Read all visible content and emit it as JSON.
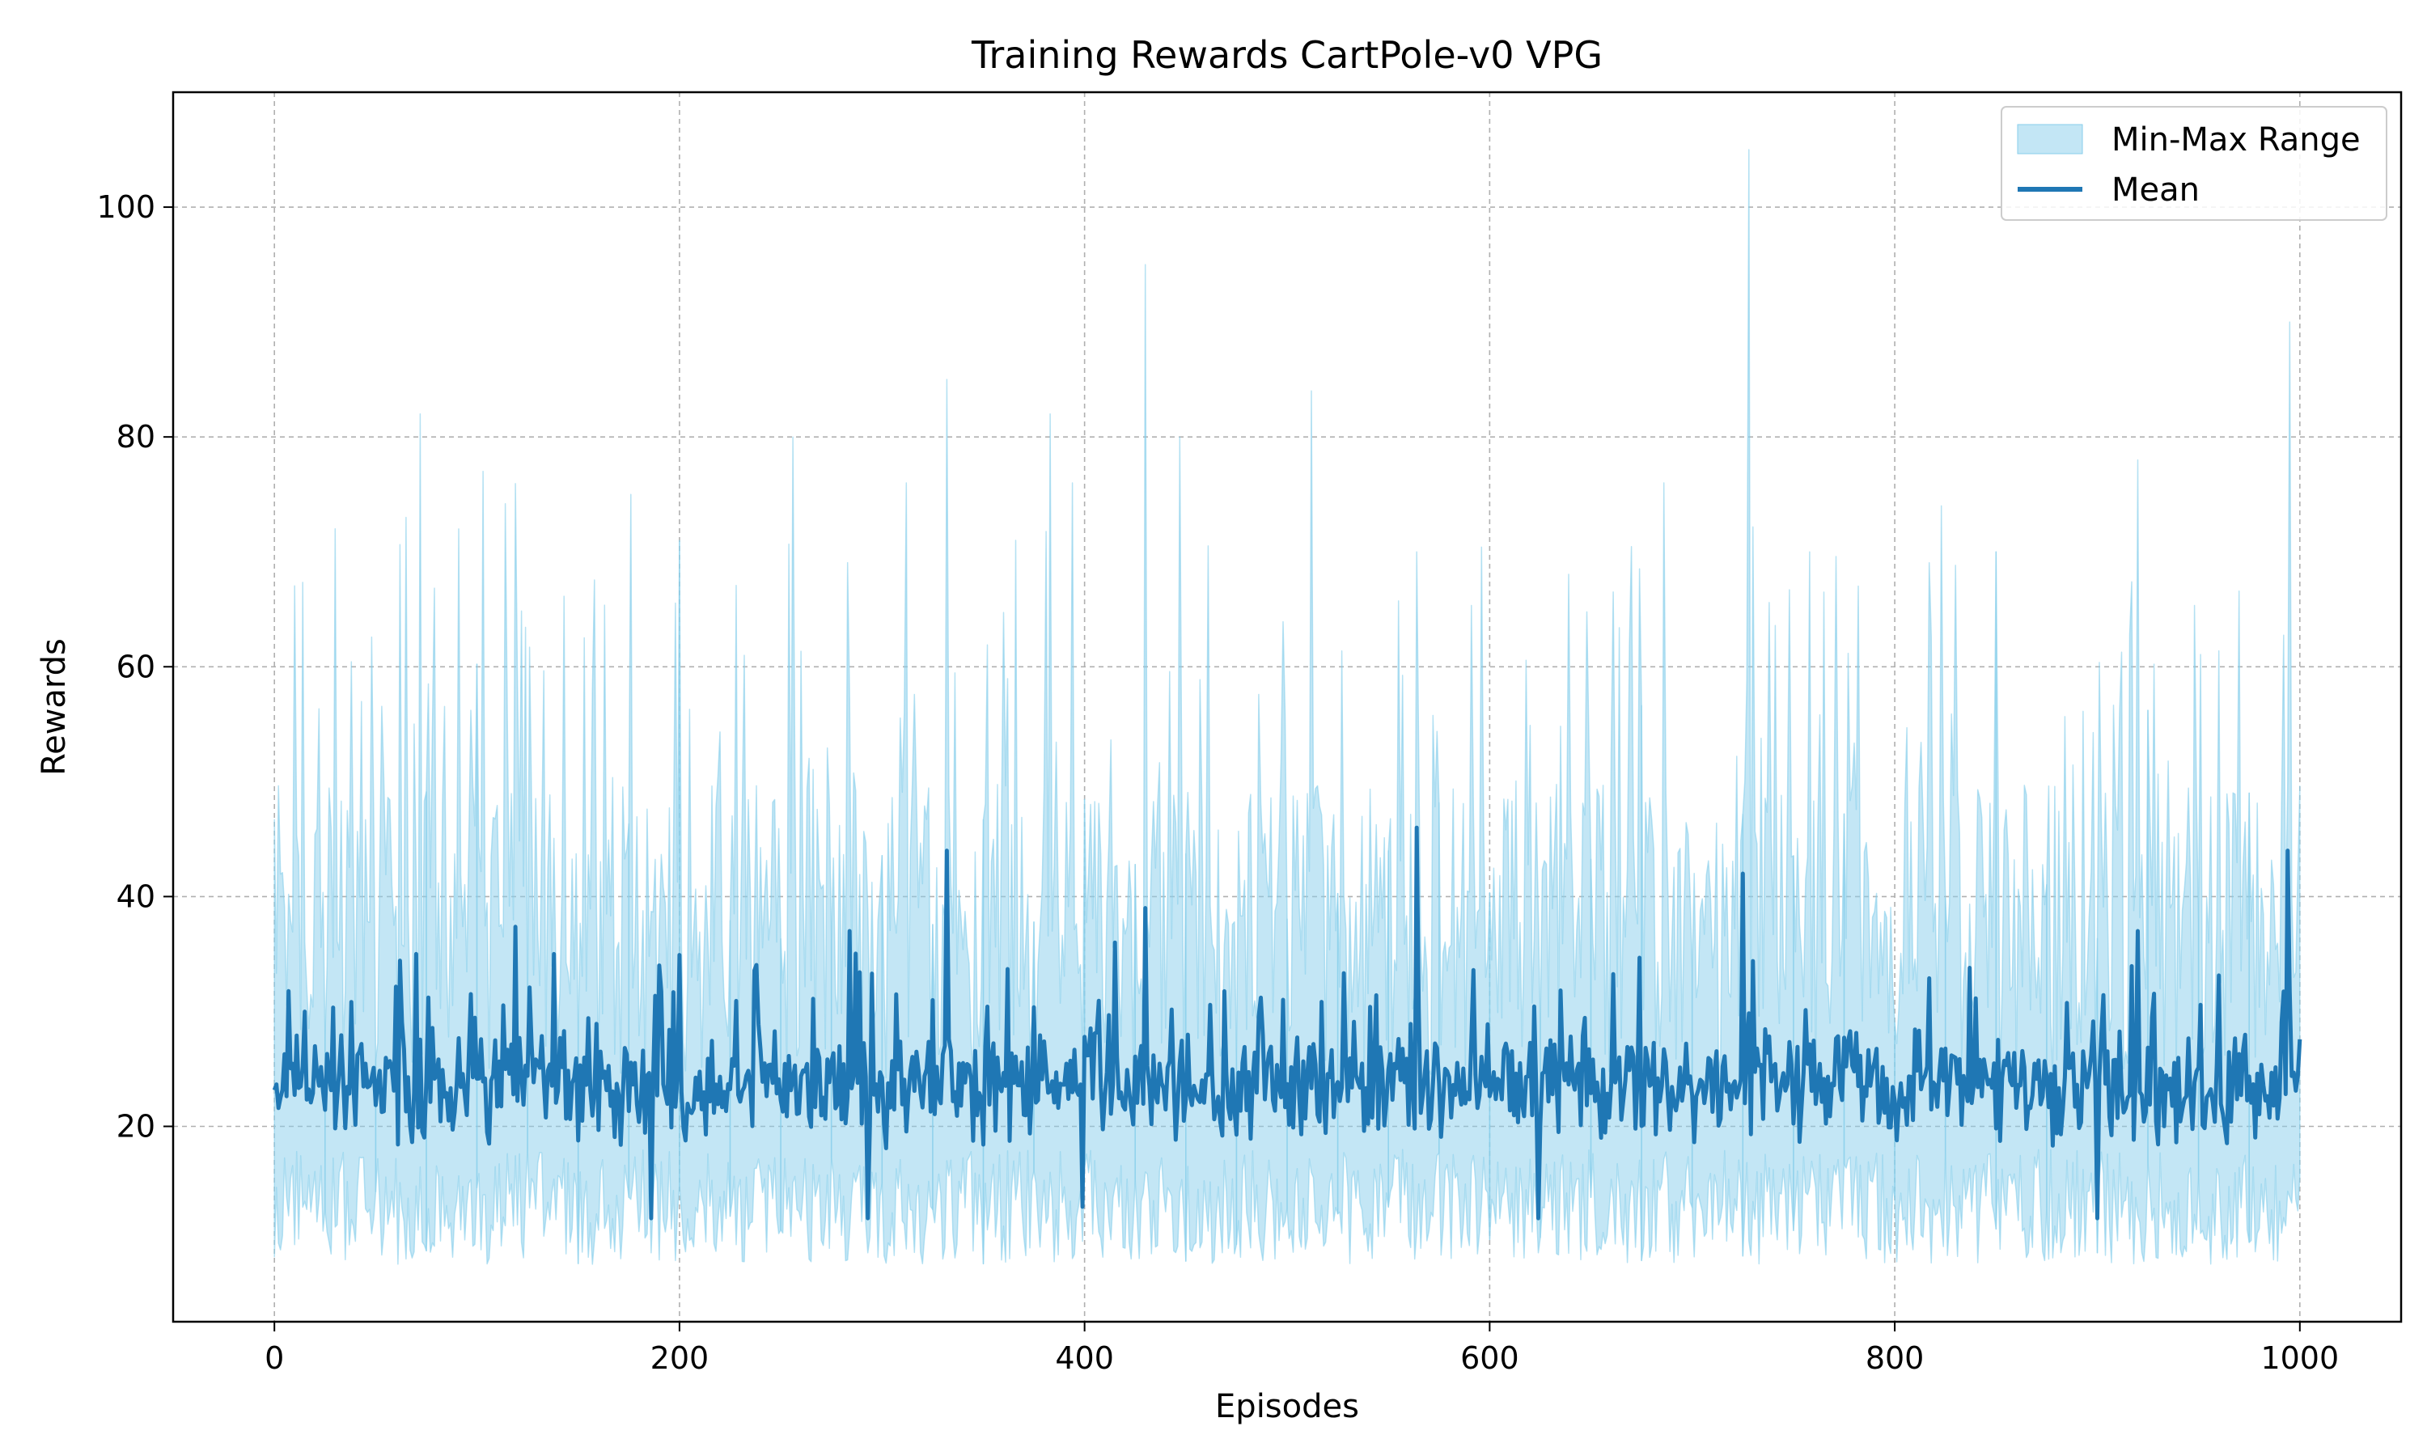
{
  "chart_data": {
    "type": "area",
    "title": "Training Rewards CartPole-v0 VPG",
    "xlabel": "Episodes",
    "ylabel": "Rewards",
    "xlim": [
      -50,
      1050
    ],
    "ylim": [
      3,
      110
    ],
    "xticks": [
      0,
      200,
      400,
      600,
      800,
      1000
    ],
    "yticks": [
      20,
      40,
      60,
      80,
      100
    ],
    "xtick_labels": [
      "0",
      "200",
      "400",
      "600",
      "800",
      "1000"
    ],
    "ytick_labels": [
      "20",
      "40",
      "60",
      "80",
      "100"
    ],
    "grid": true,
    "legend_position": "top-right",
    "colors": {
      "band": "#87ceeb",
      "band_edge": "#87ceeb",
      "mean": "#1f77b4",
      "grid": "#b0b0b0"
    },
    "series": [
      {
        "name": "Min-Max Range",
        "kind": "band",
        "x_range": [
          0,
          1000
        ],
        "typical_min": 12,
        "typical_max": 38,
        "notable_max_peaks": [
          [
            30,
            72
          ],
          [
            65,
            73
          ],
          [
            72,
            82
          ],
          [
            103,
            77
          ],
          [
            176,
            75
          ],
          [
            232,
            61
          ],
          [
            256,
            80
          ],
          [
            312,
            76
          ],
          [
            332,
            85
          ],
          [
            366,
            71
          ],
          [
            383,
            82
          ],
          [
            394,
            76
          ],
          [
            430,
            95
          ],
          [
            447,
            80
          ],
          [
            512,
            84
          ],
          [
            564,
            70
          ],
          [
            686,
            76
          ],
          [
            728,
            105
          ],
          [
            758,
            70
          ],
          [
            823,
            74
          ],
          [
            850,
            70
          ],
          [
            920,
            78
          ],
          [
            995,
            90
          ]
        ],
        "min_range": [
          8,
          18
        ]
      },
      {
        "name": "Mean",
        "kind": "line",
        "x_range": [
          0,
          1000
        ],
        "typical_range": [
          15,
          30
        ],
        "notable_peaks": [
          [
            70,
            35
          ],
          [
            138,
            35
          ],
          [
            190,
            34
          ],
          [
            284,
            37
          ],
          [
            332,
            44
          ],
          [
            415,
            36
          ],
          [
            430,
            39
          ],
          [
            564,
            46
          ],
          [
            725,
            42
          ],
          [
            920,
            37
          ],
          [
            994,
            44
          ]
        ],
        "notable_troughs": [
          [
            186,
            12
          ],
          [
            293,
            12
          ],
          [
            399,
            13
          ],
          [
            624,
            12
          ],
          [
            900,
            12
          ]
        ]
      }
    ]
  }
}
